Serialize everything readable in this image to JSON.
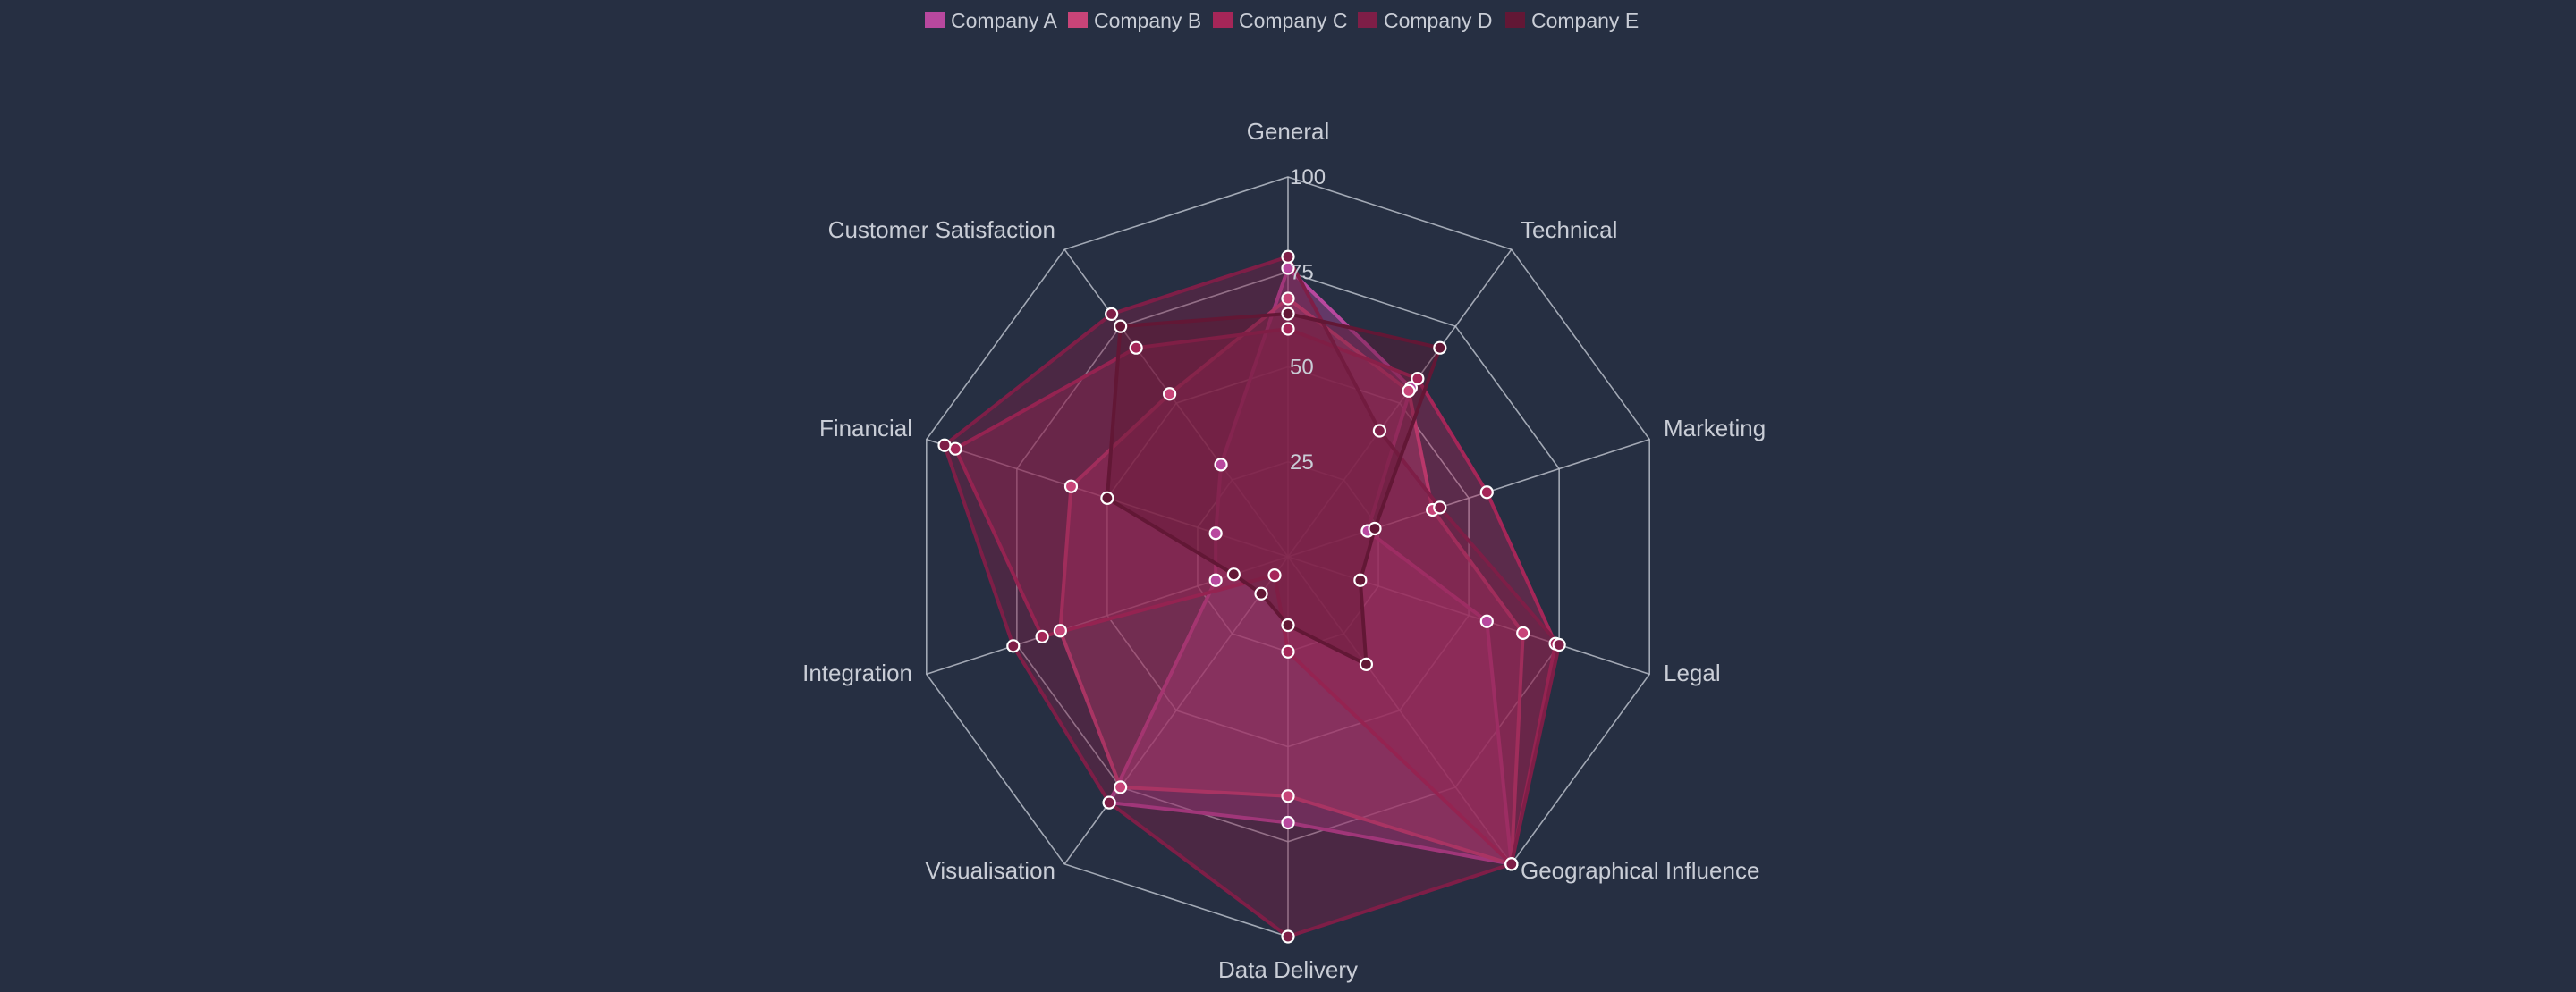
{
  "chart_data": {
    "type": "radar",
    "title": "",
    "axes": [
      "General",
      "Technical",
      "Marketing",
      "Legal",
      "Geographical Influence",
      "Data Delivery",
      "Visualisation",
      "Integration",
      "Financial",
      "Customer Satisfaction"
    ],
    "r_range": [
      0,
      100
    ],
    "ticks": [
      "0",
      "25",
      "50",
      "75",
      "100"
    ],
    "legend_position": "top",
    "series": [
      {
        "name": "Company A",
        "color": "#b8489e",
        "values": [
          76,
          55,
          22,
          55,
          100,
          70,
          80,
          20,
          20,
          30
        ]
      },
      {
        "name": "Company B",
        "color": "#c84478",
        "values": [
          68,
          54,
          40,
          65,
          100,
          63,
          75,
          63,
          60,
          53
        ]
      },
      {
        "name": "Company C",
        "color": "#a52658",
        "values": [
          60,
          58,
          55,
          74,
          100,
          25,
          6,
          68,
          92,
          68
        ]
      },
      {
        "name": "Company D",
        "color": "#7e1e47",
        "values": [
          79,
          41,
          42,
          75,
          100,
          100,
          80,
          76,
          95,
          79
        ]
      },
      {
        "name": "Company E",
        "color": "#621735",
        "values": [
          64,
          68,
          24,
          20,
          35,
          18,
          12,
          15,
          50,
          75
        ]
      }
    ]
  }
}
